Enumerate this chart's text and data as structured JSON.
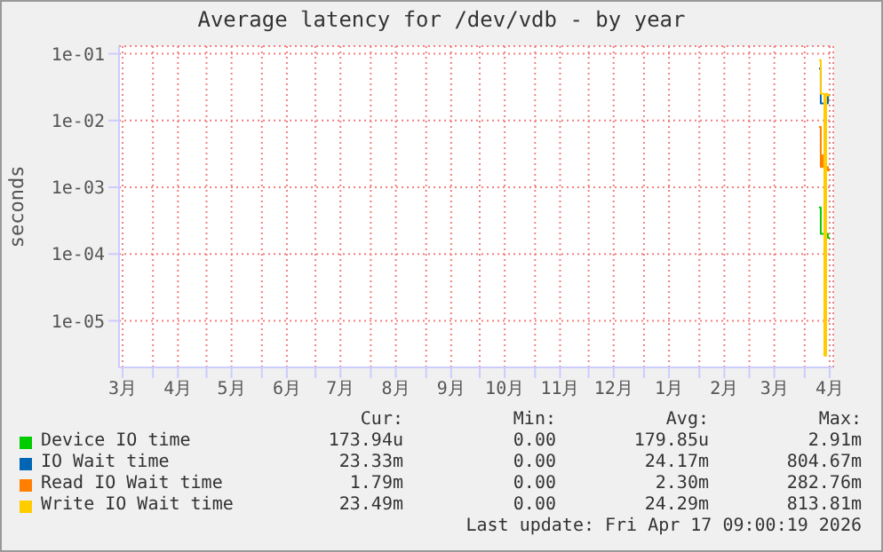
{
  "chart_data": {
    "type": "step",
    "title": "Average latency for /dev/vdb - by year",
    "ylabel": "seconds",
    "log": "y",
    "grid": true,
    "legend": "bottom",
    "xlim": [
      "2025-03-13",
      "2026-04-17"
    ],
    "xticks": [
      {
        "value": "2025-03-15",
        "label": "3月"
      },
      {
        "value": "2025-04-01",
        "label": null
      },
      {
        "value": "2025-04-15",
        "label": "4月"
      },
      {
        "value": "2025-05-01",
        "label": null
      },
      {
        "value": "2025-05-15",
        "label": "5月"
      },
      {
        "value": "2025-06-01",
        "label": null
      },
      {
        "value": "2025-06-15",
        "label": "6月"
      },
      {
        "value": "2025-07-01",
        "label": null
      },
      {
        "value": "2025-07-15",
        "label": "7月"
      },
      {
        "value": "2025-08-01",
        "label": null
      },
      {
        "value": "2025-08-15",
        "label": "8月"
      },
      {
        "value": "2025-09-01",
        "label": null
      },
      {
        "value": "2025-09-15",
        "label": "9月"
      },
      {
        "value": "2025-10-01",
        "label": null
      },
      {
        "value": "2025-10-15",
        "label": "10月"
      },
      {
        "value": "2025-11-01",
        "label": null
      },
      {
        "value": "2025-11-15",
        "label": "11月"
      },
      {
        "value": "2025-12-01",
        "label": null
      },
      {
        "value": "2025-12-15",
        "label": "12月"
      },
      {
        "value": "2026-01-01",
        "label": null
      },
      {
        "value": "2026-01-15",
        "label": "1月"
      },
      {
        "value": "2026-02-01",
        "label": null
      },
      {
        "value": "2026-02-15",
        "label": "2月"
      },
      {
        "value": "2026-03-01",
        "label": null
      },
      {
        "value": "2026-03-15",
        "label": "3月"
      },
      {
        "value": "2026-04-01",
        "label": null
      },
      {
        "value": "2026-04-15",
        "label": "4月"
      }
    ],
    "ylim": [
      2e-06,
      0.13
    ],
    "yticks": [
      {
        "value": 1e-05,
        "label": "1e-05"
      },
      {
        "value": 0.0001,
        "label": "1e-04"
      },
      {
        "value": 0.001,
        "label": "1e-03"
      },
      {
        "value": 0.01,
        "label": "1e-02"
      },
      {
        "value": 0.1,
        "label": "1e-01"
      }
    ],
    "x": [
      "2026-04-09",
      "2026-04-10",
      "2026-04-11",
      "2026-04-12",
      "2026-04-13",
      "2026-04-14",
      "2026-04-15"
    ],
    "series": [
      {
        "name": "Device IO time",
        "color": "#00cc00",
        "values": [
          0.0005,
          0.0002,
          0.0002,
          0.0002,
          0.0002,
          0.000174,
          0.000174
        ]
      },
      {
        "name": "IO Wait time",
        "color": "#0066b3",
        "values": [
          0.06,
          0.018,
          0.018,
          0.018,
          0.018,
          0.0233,
          0.0233
        ]
      },
      {
        "name": "Read IO Wait time",
        "color": "#ff8000",
        "values": [
          0.008,
          0.002,
          0.003,
          0.002,
          0.002,
          0.00179,
          0.00179
        ]
      },
      {
        "name": "Write IO Wait time",
        "color": "#ffcc00",
        "values": [
          0.08,
          0.025,
          0.025,
          3e-06,
          0.025,
          0.0235,
          0.0235
        ]
      }
    ],
    "annotations": [
      "Cur:",
      "Min:",
      "Avg:",
      "Max:",
      "173.94u",
      "0.00",
      "179.85u",
      "2.91m",
      "23.33m",
      "0.00",
      "24.17m",
      "804.67m",
      "1.79m",
      "0.00",
      "2.30m",
      "282.76m",
      "23.49m",
      "0.00",
      "24.29m",
      "813.81m",
      "Last update: Fri Apr 17 09:00:19 2026"
    ]
  }
}
